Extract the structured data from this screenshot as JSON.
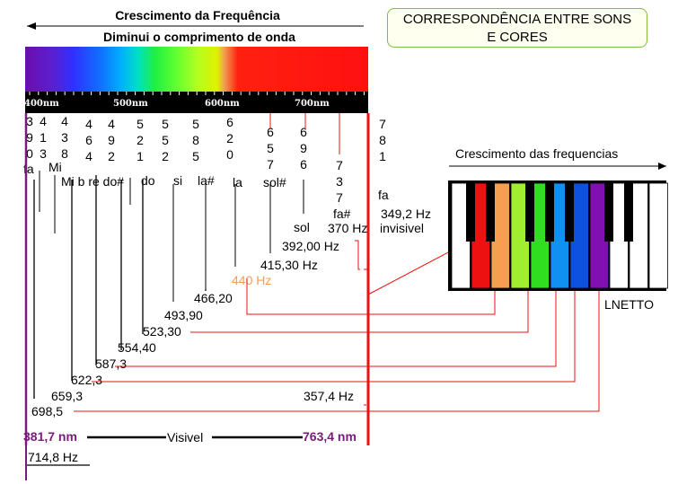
{
  "header": {
    "freq_growth": "Crescimento da Frequência",
    "wavelength_decrease": "Diminui o comprimento de onda"
  },
  "title_box": {
    "line1": "CORRESPONDÊNCIA ENTRE SONS",
    "line2": "E CORES"
  },
  "axis_labels": [
    "400nm",
    "500nm",
    "600nm",
    "700nm"
  ],
  "vertical_numbers": [
    {
      "digits": [
        "3",
        "9",
        "0"
      ]
    },
    {
      "digits": [
        "4",
        "1",
        "3"
      ]
    },
    {
      "digits": [
        "4",
        "3",
        "8"
      ]
    },
    {
      "digits": [
        "4",
        "6",
        "4"
      ]
    },
    {
      "digits": [
        "4",
        "9",
        "2"
      ]
    },
    {
      "digits": [
        "5",
        "2",
        "1"
      ]
    },
    {
      "digits": [
        "5",
        "5",
        "2"
      ]
    },
    {
      "digits": [
        "5",
        "8",
        "5"
      ]
    },
    {
      "digits": [
        "6",
        "2",
        "0"
      ]
    },
    {
      "digits": [
        "6",
        "5",
        "7"
      ]
    },
    {
      "digits": [
        "6",
        "9",
        "6"
      ]
    },
    {
      "digits": [
        "7",
        "3",
        "7"
      ]
    },
    {
      "digits": [
        "7",
        "8",
        "1"
      ]
    }
  ],
  "notes": {
    "fa": "fa",
    "mi": "Mi",
    "mib_re_do": "Mi b re do#",
    "do": "do",
    "si": "si",
    "la_sharp": "la#",
    "la": "la",
    "sol_sharp": "sol#",
    "sol": "sol",
    "fa_sharp": "fa#",
    "fa_right": "fa"
  },
  "frequencies": {
    "f349": "349,2 Hz",
    "invisible": "invisivel",
    "f370": "370 Hz",
    "f392": "392,00 Hz",
    "f415": "415,30 Hz",
    "f440": "440 Hz",
    "f466": "466,20",
    "f493": "493,90",
    "f523": "523,30",
    "f554": "554,40",
    "f587": "587,3",
    "f622": "622,3",
    "f659": "659,3",
    "f698": "698,5",
    "f357": "357,4 Hz",
    "f714": "714,8 Hz"
  },
  "bottom": {
    "left_nm": "381,7 nm",
    "visible": "Visivel",
    "right_nm": "763,4 nm"
  },
  "keyboard": {
    "title": "Crescimento das frequencias",
    "author": "LNETTO"
  },
  "colors": {
    "violet_line": "#7a1a7a",
    "red_line": "#ee1111",
    "orange_label": "#f0a050"
  }
}
